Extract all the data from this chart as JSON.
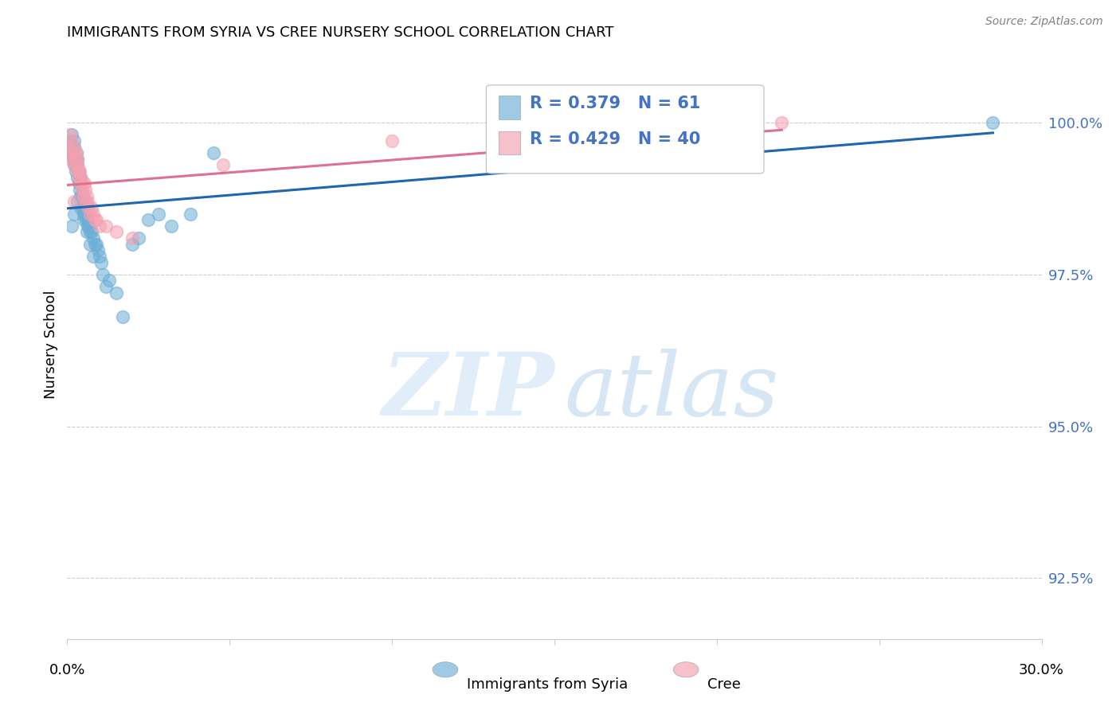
{
  "title": "IMMIGRANTS FROM SYRIA VS CREE NURSERY SCHOOL CORRELATION CHART",
  "source": "Source: ZipAtlas.com",
  "ylabel": "Nursery School",
  "xlim": [
    0.0,
    30.0
  ],
  "ylim": [
    91.5,
    101.2
  ],
  "yticks": [
    92.5,
    95.0,
    97.5,
    100.0
  ],
  "ytick_labels": [
    "92.5%",
    "95.0%",
    "97.5%",
    "100.0%"
  ],
  "legend_blue_R": "0.379",
  "legend_blue_N": "61",
  "legend_pink_R": "0.429",
  "legend_pink_N": "40",
  "blue_color": "#6baed6",
  "pink_color": "#f4a0b0",
  "blue_line_color": "#2166ac",
  "pink_line_color": "#e07090",
  "blue_x": [
    0.05,
    0.08,
    0.1,
    0.12,
    0.15,
    0.15,
    0.18,
    0.2,
    0.2,
    0.22,
    0.25,
    0.25,
    0.28,
    0.3,
    0.3,
    0.32,
    0.35,
    0.35,
    0.38,
    0.4,
    0.4,
    0.42,
    0.45,
    0.48,
    0.5,
    0.5,
    0.55,
    0.58,
    0.6,
    0.62,
    0.65,
    0.7,
    0.75,
    0.8,
    0.85,
    0.9,
    0.95,
    1.0,
    1.05,
    1.1,
    1.2,
    1.3,
    1.5,
    1.7,
    2.0,
    2.2,
    2.5,
    2.8,
    3.2,
    3.8,
    4.5,
    0.3,
    0.2,
    0.15,
    0.4,
    0.5,
    0.6,
    0.7,
    0.8,
    28.5,
    15.0
  ],
  "blue_y": [
    99.5,
    99.7,
    99.6,
    99.5,
    99.8,
    99.5,
    99.4,
    99.7,
    99.3,
    99.6,
    99.4,
    99.2,
    99.5,
    99.4,
    99.1,
    99.3,
    99.2,
    99.0,
    98.9,
    99.1,
    98.8,
    99.0,
    98.8,
    98.6,
    98.7,
    98.5,
    98.5,
    98.4,
    98.4,
    98.3,
    98.3,
    98.2,
    98.2,
    98.1,
    98.0,
    98.0,
    97.9,
    97.8,
    97.7,
    97.5,
    97.3,
    97.4,
    97.2,
    96.8,
    98.0,
    98.1,
    98.4,
    98.5,
    98.3,
    98.5,
    99.5,
    98.7,
    98.5,
    98.3,
    98.6,
    98.4,
    98.2,
    98.0,
    97.8,
    100.0,
    100.0
  ],
  "pink_x": [
    0.05,
    0.08,
    0.1,
    0.12,
    0.15,
    0.18,
    0.2,
    0.22,
    0.25,
    0.28,
    0.3,
    0.3,
    0.32,
    0.35,
    0.38,
    0.4,
    0.42,
    0.45,
    0.48,
    0.5,
    0.52,
    0.55,
    0.58,
    0.6,
    0.62,
    0.65,
    0.7,
    0.75,
    0.8,
    0.85,
    0.9,
    1.0,
    1.2,
    1.5,
    2.0,
    4.8,
    10.0,
    22.0,
    0.2,
    0.35
  ],
  "pink_y": [
    99.6,
    99.5,
    99.8,
    99.4,
    99.7,
    99.5,
    99.3,
    99.6,
    99.4,
    99.5,
    99.2,
    99.4,
    99.3,
    99.1,
    99.2,
    99.0,
    99.1,
    98.9,
    99.0,
    98.8,
    99.0,
    98.9,
    98.7,
    98.8,
    98.7,
    98.6,
    98.5,
    98.6,
    98.5,
    98.4,
    98.4,
    98.3,
    98.3,
    98.2,
    98.1,
    99.3,
    99.7,
    100.0,
    98.7,
    99.2
  ]
}
